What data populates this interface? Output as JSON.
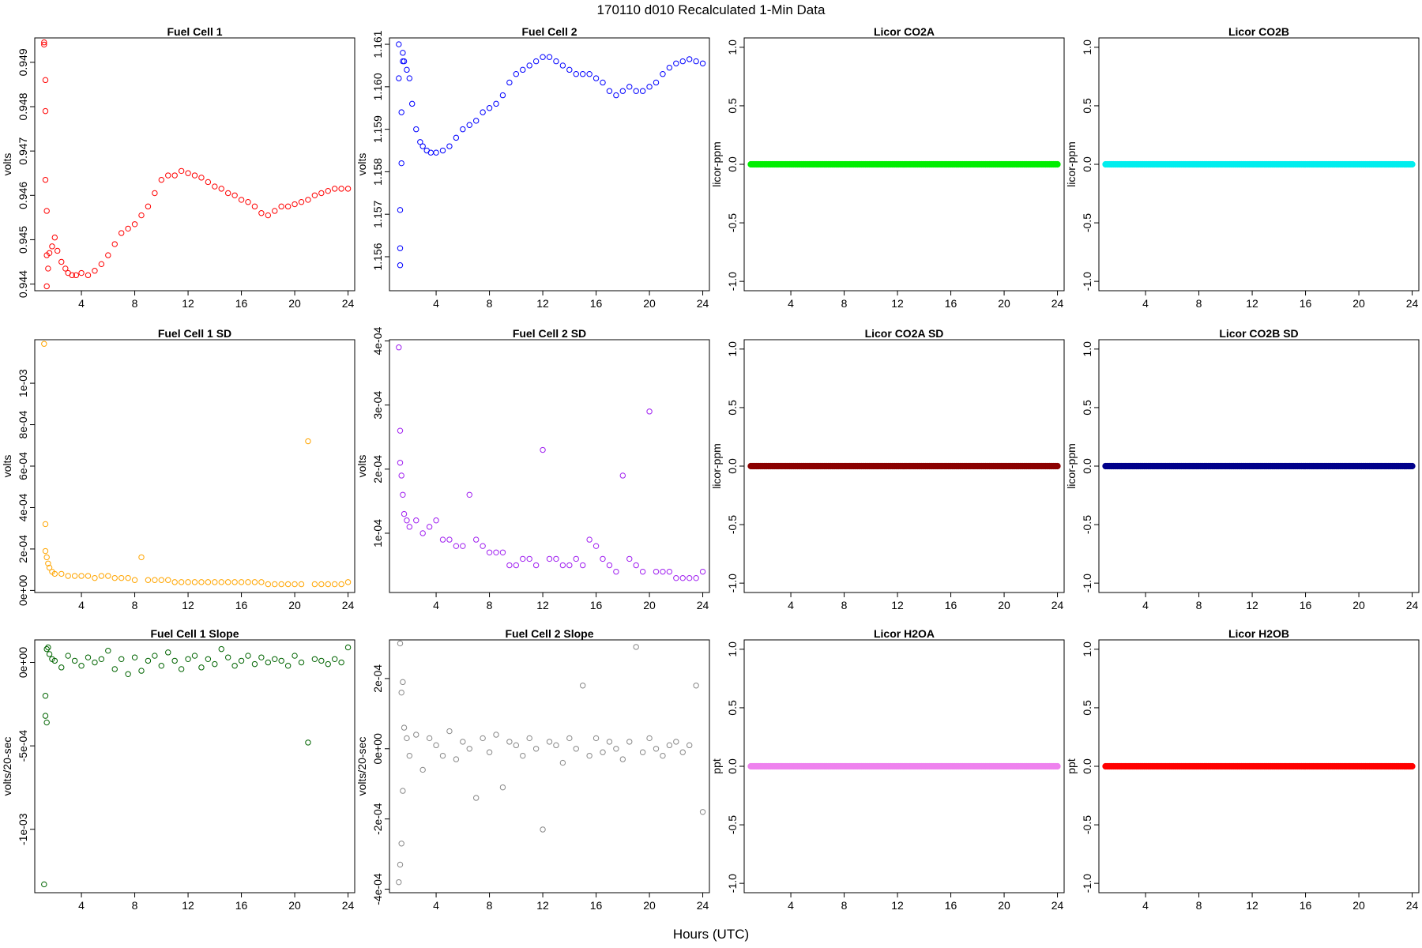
{
  "title": "170110   d010   Recalculated 1-Min Data",
  "xlabel": "Hours (UTC)",
  "chart_data": [
    {
      "type": "scatter",
      "title": "Fuel Cell 1",
      "ylabel": "volts",
      "color": "#ff0000",
      "marker": "open-circle",
      "xlim": [
        0.5,
        24.5
      ],
      "xticks": [
        4,
        8,
        12,
        16,
        20,
        24
      ],
      "ylim": [
        0.94385,
        0.94955
      ],
      "yticks": [
        0.944,
        0.945,
        0.946,
        0.947,
        0.948,
        0.949
      ],
      "yticklabels": [
        "0.944",
        "0.945",
        "0.946",
        "0.947",
        "0.948",
        "0.949"
      ],
      "x": [
        1.2,
        1.2,
        1.3,
        1.3,
        1.3,
        1.4,
        1.4,
        1.4,
        1.5,
        1.6,
        1.8,
        2,
        2.2,
        2.5,
        2.8,
        3,
        3.3,
        3.6,
        4,
        4.5,
        5,
        5.5,
        6,
        6.5,
        7,
        7.5,
        8,
        8.5,
        9,
        9.5,
        10,
        10.5,
        11,
        11.5,
        12,
        12.5,
        13,
        13.5,
        14,
        14.5,
        15,
        15.5,
        16,
        16.5,
        17,
        17.5,
        18,
        18.5,
        19,
        19.5,
        20,
        20.5,
        21,
        21.5,
        22,
        22.5,
        23,
        23.5,
        24
      ],
      "y": [
        0.94945,
        0.9494,
        0.9486,
        0.9479,
        0.94635,
        0.94565,
        0.94465,
        0.94395,
        0.94435,
        0.9447,
        0.94485,
        0.94505,
        0.94475,
        0.9445,
        0.94435,
        0.94425,
        0.9442,
        0.9442,
        0.94425,
        0.9442,
        0.9443,
        0.94445,
        0.94465,
        0.9449,
        0.94515,
        0.94525,
        0.94535,
        0.94555,
        0.94575,
        0.94605,
        0.94635,
        0.94645,
        0.94645,
        0.94655,
        0.9465,
        0.94645,
        0.9464,
        0.9463,
        0.9462,
        0.94615,
        0.94605,
        0.946,
        0.9459,
        0.94585,
        0.94575,
        0.9456,
        0.94555,
        0.94565,
        0.94575,
        0.94575,
        0.9458,
        0.94585,
        0.9459,
        0.946,
        0.94605,
        0.9461,
        0.94615,
        0.94615,
        0.94615
      ]
    },
    {
      "type": "scatter",
      "title": "Fuel Cell 2",
      "ylabel": "volts",
      "color": "#0000ff",
      "marker": "open-circle",
      "xlim": [
        0.5,
        24.5
      ],
      "xticks": [
        4,
        8,
        12,
        16,
        20,
        24
      ],
      "ylim": [
        1.1552,
        1.16115
      ],
      "yticks": [
        1.156,
        1.157,
        1.158,
        1.159,
        1.16,
        1.161
      ],
      "yticklabels": [
        "1.156",
        "1.157",
        "1.158",
        "1.159",
        "1.160",
        "1.161"
      ],
      "x": [
        1.2,
        1.2,
        1.3,
        1.3,
        1.3,
        1.4,
        1.4,
        1.5,
        1.5,
        1.6,
        1.8,
        2,
        2.2,
        2.5,
        2.8,
        3,
        3.3,
        3.6,
        4,
        4.5,
        5,
        5.5,
        6,
        6.5,
        7,
        7.5,
        8,
        8.5,
        9,
        9.5,
        10,
        10.5,
        11,
        11.5,
        12,
        12.5,
        13,
        13.5,
        14,
        14.5,
        15,
        15.5,
        16,
        16.5,
        17,
        17.5,
        18,
        18.5,
        19,
        19.5,
        20,
        20.5,
        21,
        21.5,
        22,
        22.5,
        23,
        23.5,
        24
      ],
      "y": [
        1.161,
        1.1602,
        1.1558,
        1.1562,
        1.1571,
        1.1582,
        1.1594,
        1.1606,
        1.1608,
        1.1606,
        1.1604,
        1.1602,
        1.1596,
        1.159,
        1.1587,
        1.1586,
        1.1585,
        1.15845,
        1.15845,
        1.1585,
        1.1586,
        1.1588,
        1.159,
        1.1591,
        1.1592,
        1.1594,
        1.1595,
        1.1596,
        1.1598,
        1.1601,
        1.1603,
        1.1604,
        1.1605,
        1.1606,
        1.1607,
        1.1607,
        1.1606,
        1.1605,
        1.1604,
        1.1603,
        1.1603,
        1.1603,
        1.1602,
        1.1601,
        1.1599,
        1.1598,
        1.1599,
        1.16,
        1.1599,
        1.1599,
        1.16,
        1.1601,
        1.1603,
        1.16045,
        1.16055,
        1.1606,
        1.16065,
        1.1606,
        1.16055
      ]
    },
    {
      "type": "scatter",
      "title": "Licor CO2A",
      "ylabel": "licor-ppm",
      "color": "#00ee00",
      "marker": "filled-circle",
      "xlim": [
        0.5,
        24.5
      ],
      "xticks": [
        4,
        8,
        12,
        16,
        20,
        24
      ],
      "ylim": [
        -1.08,
        1.08
      ],
      "yticks": [
        -1,
        -0.5,
        0,
        0.5,
        1
      ],
      "yticklabels": [
        "-1.0",
        "-0.5",
        "0.0",
        "0.5",
        "1.0"
      ],
      "x_range": [
        1,
        24
      ],
      "constant_value": 0
    },
    {
      "type": "scatter",
      "title": "Licor CO2B",
      "ylabel": "licor-ppm",
      "color": "#00eeee",
      "marker": "filled-circle",
      "xlim": [
        0.5,
        24.5
      ],
      "xticks": [
        4,
        8,
        12,
        16,
        20,
        24
      ],
      "ylim": [
        -1.08,
        1.08
      ],
      "yticks": [
        -1,
        -0.5,
        0,
        0.5,
        1
      ],
      "yticklabels": [
        "-1.0",
        "-0.5",
        "0.0",
        "0.5",
        "1.0"
      ],
      "x_range": [
        1,
        24
      ],
      "constant_value": 0
    },
    {
      "type": "scatter",
      "title": "Fuel Cell 1 SD",
      "ylabel": "volts",
      "color": "#ffa500",
      "marker": "open-circle",
      "xlim": [
        0.5,
        24.5
      ],
      "xticks": [
        4,
        8,
        12,
        16,
        20,
        24
      ],
      "ylim": [
        -1e-05,
        0.00121
      ],
      "yticks": [
        0,
        0.0002,
        0.0004,
        0.0006,
        0.0008,
        0.001
      ],
      "yticklabels": [
        "0e+00",
        "2e-04",
        "4e-04",
        "6e-04",
        "8e-04",
        "1e-03"
      ],
      "x": [
        1.2,
        1.3,
        1.3,
        1.4,
        1.5,
        1.6,
        1.8,
        2,
        2.5,
        3,
        3.5,
        4,
        4.5,
        5,
        5.5,
        6,
        6.5,
        7,
        7.5,
        8,
        8.5,
        9,
        9.5,
        10,
        10.5,
        11,
        11.5,
        12,
        12.5,
        13,
        13.5,
        14,
        14.5,
        15,
        15.5,
        16,
        16.5,
        17,
        17.5,
        18,
        18.5,
        19,
        19.5,
        20,
        20.5,
        21,
        21.5,
        22,
        22.5,
        23,
        23.5,
        24
      ],
      "y": [
        0.00119,
        0.00032,
        0.00019,
        0.00016,
        0.00013,
        0.00011,
        9e-05,
        8e-05,
        8e-05,
        7e-05,
        7e-05,
        7e-05,
        7e-05,
        6e-05,
        7e-05,
        7e-05,
        6e-05,
        6e-05,
        6e-05,
        5e-05,
        0.00016,
        5e-05,
        5e-05,
        5e-05,
        5e-05,
        4e-05,
        4e-05,
        4e-05,
        4e-05,
        4e-05,
        4e-05,
        4e-05,
        4e-05,
        4e-05,
        4e-05,
        4e-05,
        4e-05,
        4e-05,
        4e-05,
        3e-05,
        3e-05,
        3e-05,
        3e-05,
        3e-05,
        3e-05,
        0.00072,
        3e-05,
        3e-05,
        3e-05,
        3e-05,
        3e-05,
        4e-05
      ]
    },
    {
      "type": "scatter",
      "title": "Fuel Cell 2 SD",
      "ylabel": "volts",
      "color": "#a020f0",
      "marker": "open-circle",
      "xlim": [
        0.5,
        24.5
      ],
      "xticks": [
        4,
        8,
        12,
        16,
        20,
        24
      ],
      "ylim": [
        7.5e-06,
        0.000402
      ],
      "yticks": [
        0.0001,
        0.0002,
        0.0003,
        0.0004
      ],
      "yticklabels": [
        "1e-04",
        "2e-04",
        "3e-04",
        "4e-04"
      ],
      "x": [
        1.2,
        1.3,
        1.3,
        1.4,
        1.5,
        1.6,
        1.8,
        2,
        2.5,
        3,
        3.5,
        4,
        4.5,
        5,
        5.5,
        6,
        6.5,
        7,
        7.5,
        8,
        8.5,
        9,
        9.5,
        10,
        10.5,
        11,
        11.5,
        12,
        12.5,
        13,
        13.5,
        14,
        14.5,
        15,
        15.5,
        16,
        16.5,
        17,
        17.5,
        18,
        18.5,
        19,
        19.5,
        20,
        20.5,
        21,
        21.5,
        22,
        22.5,
        23,
        23.5,
        24
      ],
      "y": [
        0.00039,
        0.00026,
        0.00021,
        0.00019,
        0.00016,
        0.00013,
        0.00012,
        0.00011,
        0.00012,
        0.0001,
        0.00011,
        0.00012,
        9e-05,
        9e-05,
        8e-05,
        8e-05,
        0.00016,
        9e-05,
        8e-05,
        7e-05,
        7e-05,
        7e-05,
        5e-05,
        5e-05,
        6e-05,
        6e-05,
        5e-05,
        0.00023,
        6e-05,
        6e-05,
        5e-05,
        5e-05,
        6e-05,
        5e-05,
        9e-05,
        8e-05,
        6e-05,
        5e-05,
        4e-05,
        0.00019,
        6e-05,
        5e-05,
        4e-05,
        0.00029,
        4e-05,
        4e-05,
        4e-05,
        3e-05,
        3e-05,
        3e-05,
        3e-05,
        4e-05
      ]
    },
    {
      "type": "scatter",
      "title": "Licor CO2A SD",
      "ylabel": "licor-ppm",
      "color": "#8b0000",
      "marker": "filled-circle",
      "xlim": [
        0.5,
        24.5
      ],
      "xticks": [
        4,
        8,
        12,
        16,
        20,
        24
      ],
      "ylim": [
        -1.08,
        1.08
      ],
      "yticks": [
        -1,
        -0.5,
        0,
        0.5,
        1
      ],
      "yticklabels": [
        "-1.0",
        "-0.5",
        "0.0",
        "0.5",
        "1.0"
      ],
      "x_range": [
        1,
        24
      ],
      "constant_value": 0
    },
    {
      "type": "scatter",
      "title": "Licor CO2B SD",
      "ylabel": "licor-ppm",
      "color": "#00008b",
      "marker": "filled-circle",
      "xlim": [
        0.5,
        24.5
      ],
      "xticks": [
        4,
        8,
        12,
        16,
        20,
        24
      ],
      "ylim": [
        -1.08,
        1.08
      ],
      "yticks": [
        -1,
        -0.5,
        0,
        0.5,
        1
      ],
      "yticklabels": [
        "-1.0",
        "-0.5",
        "0.0",
        "0.5",
        "1.0"
      ],
      "x_range": [
        1,
        24
      ],
      "constant_value": 0
    },
    {
      "type": "scatter",
      "title": "Fuel Cell 1 Slope",
      "ylabel": "volts/20-sec",
      "color": "#006400",
      "marker": "open-circle",
      "xlim": [
        0.5,
        24.5
      ],
      "xticks": [
        4,
        8,
        12,
        16,
        20,
        24
      ],
      "ylim": [
        -0.00138,
        0.000135
      ],
      "yticks": [
        -0.001,
        -0.0005,
        0
      ],
      "yticklabels": [
        "-1e-03",
        "-5e-04",
        "0e+00"
      ],
      "x": [
        1.2,
        1.3,
        1.3,
        1.4,
        1.4,
        1.5,
        1.6,
        1.8,
        2,
        2.5,
        3,
        3.5,
        4,
        4.5,
        5,
        5.5,
        6,
        6.5,
        7,
        7.5,
        8,
        8.5,
        9,
        9.5,
        10,
        10.5,
        11,
        11.5,
        12,
        12.5,
        13,
        13.5,
        14,
        14.5,
        15,
        15.5,
        16,
        16.5,
        17,
        17.5,
        18,
        18.5,
        19,
        19.5,
        20,
        20.5,
        21,
        21.5,
        22,
        22.5,
        23,
        23.5,
        24
      ],
      "y": [
        -0.00133,
        -0.00032,
        -0.0002,
        -0.00036,
        8e-05,
        9e-05,
        5e-05,
        2e-05,
        1e-05,
        -3e-05,
        4e-05,
        1e-05,
        -2e-05,
        3e-05,
        0.0,
        2e-05,
        7e-05,
        -4e-05,
        2e-05,
        -7e-05,
        3e-05,
        -5e-05,
        1e-05,
        4e-05,
        -2e-05,
        6e-05,
        1e-05,
        -4e-05,
        2e-05,
        4e-05,
        -3e-05,
        2e-05,
        -1e-05,
        8e-05,
        3e-05,
        -2e-05,
        1e-05,
        4e-05,
        -1e-05,
        3e-05,
        0.0,
        2e-05,
        1e-05,
        -2e-05,
        4e-05,
        0.0,
        -0.00048,
        2e-05,
        1e-05,
        -1e-05,
        2e-05,
        0.0,
        9e-05
      ]
    },
    {
      "type": "scatter",
      "title": "Fuel Cell 2 Slope",
      "ylabel": "volts/20-sec",
      "color": "#888888",
      "marker": "open-circle",
      "xlim": [
        0.5,
        24.5
      ],
      "xticks": [
        4,
        8,
        12,
        16,
        20,
        24
      ],
      "ylim": [
        -0.00041,
        0.00031
      ],
      "yticks": [
        -0.0004,
        -0.0002,
        0,
        0.0002
      ],
      "yticklabels": [
        "-4e-04",
        "-2e-04",
        "0e+00",
        "2e-04"
      ],
      "x": [
        1.2,
        1.3,
        1.3,
        1.4,
        1.4,
        1.5,
        1.5,
        1.6,
        1.8,
        2,
        2.5,
        3,
        3.5,
        4,
        4.5,
        5,
        5.5,
        6,
        6.5,
        7,
        7.5,
        8,
        8.5,
        9,
        9.5,
        10,
        10.5,
        11,
        11.5,
        12,
        12.5,
        13,
        13.5,
        14,
        14.5,
        15,
        15.5,
        16,
        16.5,
        17,
        17.5,
        18,
        18.5,
        19,
        19.5,
        20,
        20.5,
        21,
        21.5,
        22,
        22.5,
        23,
        23.5,
        24
      ],
      "y": [
        -0.00038,
        0.0003,
        -0.00033,
        0.00016,
        -0.00027,
        0.00019,
        -0.00012,
        6e-05,
        3e-05,
        -2e-05,
        4e-05,
        -6e-05,
        3e-05,
        1e-05,
        -2e-05,
        5e-05,
        -3e-05,
        2e-05,
        0.0,
        -0.00014,
        3e-05,
        -1e-05,
        4e-05,
        -0.00011,
        2e-05,
        1e-05,
        -2e-05,
        3e-05,
        0.0,
        -0.00023,
        2e-05,
        1e-05,
        -4e-05,
        3e-05,
        0.0,
        0.00018,
        -2e-05,
        3e-05,
        -1e-05,
        2e-05,
        0.0,
        -3e-05,
        2e-05,
        0.00029,
        -1e-05,
        3e-05,
        0.0,
        -2e-05,
        1e-05,
        2e-05,
        -1e-05,
        1e-05,
        0.00018,
        -0.00018
      ]
    },
    {
      "type": "scatter",
      "title": "Licor H2OA",
      "ylabel": "ppt",
      "color": "#ee82ee",
      "marker": "filled-circle",
      "xlim": [
        0.5,
        24.5
      ],
      "xticks": [
        4,
        8,
        12,
        16,
        20,
        24
      ],
      "ylim": [
        -1.08,
        1.08
      ],
      "yticks": [
        -1,
        -0.5,
        0,
        0.5,
        1
      ],
      "yticklabels": [
        "-1.0",
        "-0.5",
        "0.0",
        "0.5",
        "1.0"
      ],
      "x_range": [
        1,
        24
      ],
      "constant_value": 0
    },
    {
      "type": "scatter",
      "title": "Licor H2OB",
      "ylabel": "ppt",
      "color": "#ff0000",
      "marker": "filled-circle",
      "xlim": [
        0.5,
        24.5
      ],
      "xticks": [
        4,
        8,
        12,
        16,
        20,
        24
      ],
      "ylim": [
        -1.08,
        1.08
      ],
      "yticks": [
        -1,
        -0.5,
        0,
        0.5,
        1
      ],
      "yticklabels": [
        "-1.0",
        "-0.5",
        "0.0",
        "0.5",
        "1.0"
      ],
      "x_range": [
        1,
        24
      ],
      "constant_value": 0
    }
  ]
}
